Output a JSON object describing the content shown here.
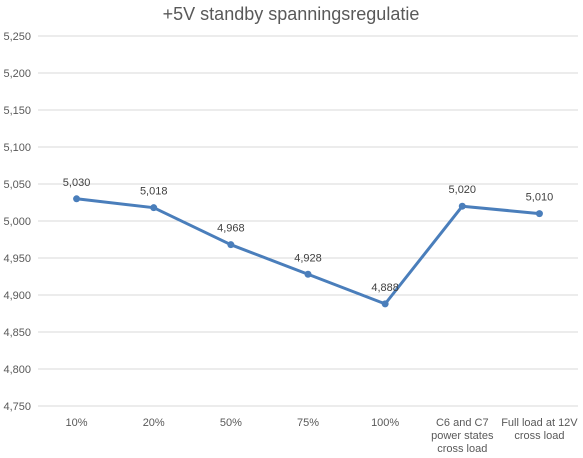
{
  "chart_data": {
    "type": "line",
    "title": "+5V standby spanningsregulatie",
    "xlabel": "",
    "ylabel": "",
    "categories": [
      [
        "10%"
      ],
      [
        "20%"
      ],
      [
        "50%"
      ],
      [
        "75%"
      ],
      [
        "100%"
      ],
      [
        "C6 and C7",
        "power states",
        "cross load"
      ],
      [
        "Full load at 12V",
        "cross load"
      ]
    ],
    "series": [
      {
        "values": [
          5.03,
          5.018,
          4.968,
          4.928,
          4.888,
          5.02,
          5.01
        ]
      }
    ],
    "data_labels": [
      "5,030",
      "5,018",
      "4,968",
      "4,928",
      "4,888",
      "5,020",
      "5,010"
    ],
    "y_ticks": [
      "4,750",
      "4,800",
      "4,850",
      "4,900",
      "4,950",
      "5,000",
      "5,050",
      "5,100",
      "5,150",
      "5,200",
      "5,250"
    ],
    "ylim": [
      4.75,
      5.25
    ],
    "grid": true,
    "legend": "none",
    "colors": {
      "line": "#4a7ebb",
      "marker": "#4a7ebb",
      "grid": "#d9d9d9"
    }
  }
}
